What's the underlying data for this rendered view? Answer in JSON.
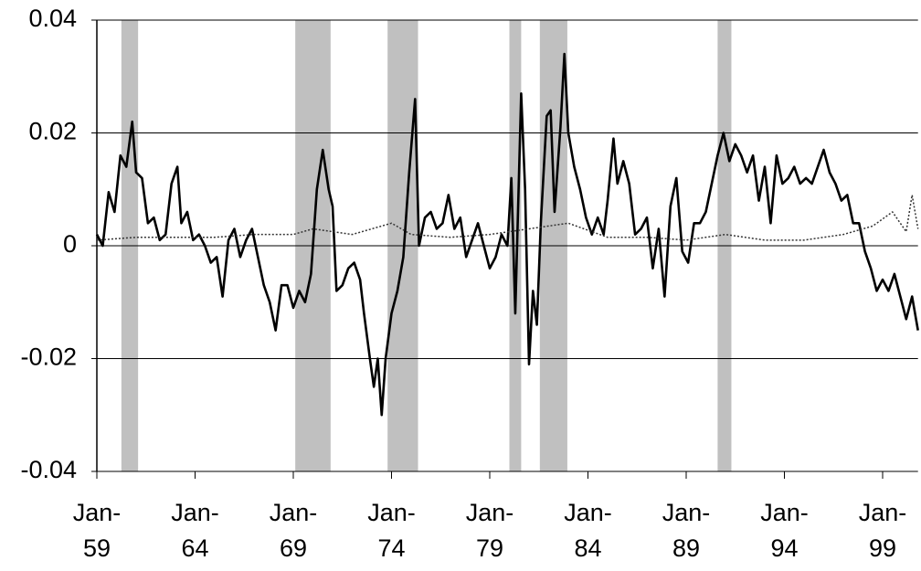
{
  "chart_data": {
    "type": "line",
    "xlim": [
      1959,
      2000.8
    ],
    "ylim": [
      -0.04,
      0.04
    ],
    "yticks": [
      -0.04,
      -0.02,
      0,
      0.02,
      0.04
    ],
    "xticks": [
      {
        "value": 1959,
        "label": "Jan-59"
      },
      {
        "value": 1964,
        "label": "Jan-64"
      },
      {
        "value": 1969,
        "label": "Jan-69"
      },
      {
        "value": 1974,
        "label": "Jan-74"
      },
      {
        "value": 1979,
        "label": "Jan-79"
      },
      {
        "value": 1984,
        "label": "Jan-84"
      },
      {
        "value": 1989,
        "label": "Jan-89"
      },
      {
        "value": 1994,
        "label": "Jan-94"
      },
      {
        "value": 1999,
        "label": "Jan-99"
      }
    ],
    "grid": true,
    "shaded_regions": {
      "color": "#c0c0c0",
      "spans": [
        [
          1960.25,
          1961.1
        ],
        [
          1969.1,
          1970.9
        ],
        [
          1973.8,
          1975.35
        ],
        [
          1980.0,
          1980.6
        ],
        [
          1981.55,
          1982.95
        ],
        [
          1990.6,
          1991.3
        ]
      ]
    },
    "series": [
      {
        "color": "#000000",
        "style": "solid",
        "x": [
          1959.0,
          1959.3,
          1959.6,
          1959.9,
          1960.2,
          1960.5,
          1960.8,
          1961.0,
          1961.3,
          1961.6,
          1961.9,
          1962.2,
          1962.5,
          1962.8,
          1963.1,
          1963.3,
          1963.6,
          1963.9,
          1964.2,
          1964.5,
          1964.8,
          1965.1,
          1965.4,
          1965.7,
          1966.0,
          1966.3,
          1966.6,
          1966.9,
          1967.2,
          1967.5,
          1967.8,
          1968.1,
          1968.4,
          1968.7,
          1969.0,
          1969.3,
          1969.6,
          1969.9,
          1970.2,
          1970.5,
          1970.8,
          1971.0,
          1971.2,
          1971.5,
          1971.8,
          1972.1,
          1972.4,
          1972.6,
          1972.9,
          1973.1,
          1973.3,
          1973.5,
          1973.7,
          1974.0,
          1974.3,
          1974.6,
          1974.9,
          1975.2,
          1975.4,
          1975.7,
          1976.0,
          1976.3,
          1976.6,
          1976.9,
          1977.2,
          1977.5,
          1977.8,
          1978.1,
          1978.4,
          1978.7,
          1979.0,
          1979.3,
          1979.6,
          1979.9,
          1980.1,
          1980.3,
          1980.6,
          1980.8,
          1981.0,
          1981.2,
          1981.4,
          1981.6,
          1981.9,
          1982.1,
          1982.3,
          1982.6,
          1982.8,
          1983.0,
          1983.3,
          1983.6,
          1983.9,
          1984.2,
          1984.5,
          1984.8,
          1985.0,
          1985.3,
          1985.5,
          1985.8,
          1986.1,
          1986.4,
          1986.7,
          1987.0,
          1987.3,
          1987.6,
          1987.9,
          1988.2,
          1988.5,
          1988.8,
          1989.1,
          1989.4,
          1989.7,
          1990.0,
          1990.3,
          1990.6,
          1990.9,
          1991.2,
          1991.5,
          1991.8,
          1992.1,
          1992.4,
          1992.7,
          1993.0,
          1993.3,
          1993.6,
          1993.9,
          1994.2,
          1994.5,
          1994.8,
          1995.1,
          1995.4,
          1995.7,
          1996.0,
          1996.3,
          1996.6,
          1996.9,
          1997.2,
          1997.5,
          1997.8,
          1998.1,
          1998.4,
          1998.7,
          1999.0,
          1999.3,
          1999.6,
          1999.9,
          2000.2,
          2000.5,
          2000.8
        ],
        "values": [
          0.002,
          0.0,
          0.0095,
          0.006,
          0.016,
          0.014,
          0.022,
          0.013,
          0.012,
          0.004,
          0.005,
          0.001,
          0.002,
          0.011,
          0.014,
          0.004,
          0.006,
          0.001,
          0.002,
          0.0,
          -0.003,
          -0.002,
          -0.009,
          0.001,
          0.003,
          -0.002,
          0.001,
          0.003,
          -0.002,
          -0.007,
          -0.01,
          -0.015,
          -0.007,
          -0.007,
          -0.011,
          -0.008,
          -0.01,
          -0.005,
          0.01,
          0.017,
          0.01,
          0.007,
          -0.008,
          -0.007,
          -0.004,
          -0.003,
          -0.006,
          -0.012,
          -0.02,
          -0.025,
          -0.02,
          -0.03,
          -0.02,
          -0.012,
          -0.008,
          -0.002,
          0.013,
          0.026,
          0.0,
          0.005,
          0.006,
          0.003,
          0.004,
          0.009,
          0.003,
          0.005,
          -0.002,
          0.001,
          0.004,
          0.0,
          -0.004,
          -0.002,
          0.002,
          0.0,
          0.012,
          -0.012,
          0.027,
          0.01,
          -0.021,
          -0.008,
          -0.014,
          0.004,
          0.023,
          0.024,
          0.006,
          0.021,
          0.034,
          0.02,
          0.014,
          0.01,
          0.005,
          0.002,
          0.005,
          0.002,
          0.008,
          0.019,
          0.011,
          0.015,
          0.011,
          0.002,
          0.003,
          0.005,
          -0.004,
          0.003,
          -0.009,
          0.007,
          0.012,
          -0.001,
          -0.003,
          0.004,
          0.004,
          0.006,
          0.011,
          0.016,
          0.02,
          0.015,
          0.018,
          0.016,
          0.013,
          0.016,
          0.008,
          0.014,
          0.004,
          0.016,
          0.011,
          0.012,
          0.014,
          0.011,
          0.012,
          0.011,
          0.014,
          0.017,
          0.013,
          0.011,
          0.008,
          0.009,
          0.004,
          0.004,
          -0.001,
          -0.004,
          -0.008,
          -0.006,
          -0.008,
          -0.005,
          -0.009,
          -0.013,
          -0.009,
          -0.015
        ]
      },
      {
        "color": "#333333",
        "style": "dotted",
        "x": [
          1959,
          1961,
          1963,
          1965,
          1967,
          1969,
          1970,
          1972,
          1974,
          1975,
          1977,
          1979,
          1981,
          1983,
          1985,
          1987,
          1989,
          1991,
          1993,
          1995,
          1997,
          1998.5,
          1999.5,
          2000.2,
          2000.5,
          2000.8
        ],
        "values": [
          0.001,
          0.0015,
          0.0015,
          0.0015,
          0.002,
          0.002,
          0.003,
          0.002,
          0.004,
          0.002,
          0.0015,
          0.002,
          0.003,
          0.004,
          0.0015,
          0.0015,
          0.001,
          0.002,
          0.001,
          0.001,
          0.002,
          0.0035,
          0.006,
          0.0025,
          0.009,
          0.003
        ]
      }
    ]
  }
}
